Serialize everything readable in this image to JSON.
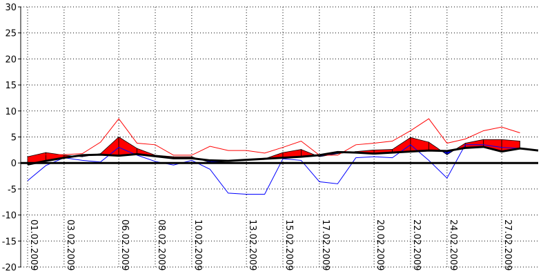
{
  "chart_data": {
    "type": "area",
    "ylim": [
      -20,
      30
    ],
    "yticks": [
      -20,
      -15,
      -10,
      -5,
      0,
      5,
      10,
      15,
      20,
      25,
      30
    ],
    "x_labels": [
      "01.02.2009",
      "03.02.2009",
      "06.02.2009",
      "08.02.2009",
      "10.02.2009",
      "13.02.2009",
      "15.02.2009",
      "17.02.2009",
      "20.02.2009",
      "22.02.2009",
      "24.02.2009",
      "27.02.2009"
    ],
    "x_label_days": [
      1,
      3,
      6,
      8,
      10,
      13,
      15,
      17,
      20,
      22,
      24,
      27
    ],
    "grid": true,
    "days": [
      1,
      2,
      3,
      4,
      5,
      6,
      7,
      8,
      9,
      10,
      11,
      12,
      13,
      14,
      15,
      16,
      17,
      18,
      19,
      20,
      21,
      22,
      23,
      24,
      25,
      26,
      27,
      28,
      29
    ],
    "mean_temperature": [
      1.2,
      2.0,
      1.5,
      1.2,
      1.8,
      5.0,
      2.8,
      1.5,
      1.2,
      1.2,
      0.1,
      0.3,
      0.5,
      0.8,
      2.0,
      2.6,
      1.2,
      1.8,
      2.2,
      2.5,
      2.6,
      4.9,
      4.0,
      1.6,
      3.8,
      4.5,
      4.5,
      4.2,
      null
    ],
    "normal_temperature": [
      -0.3,
      0.4,
      1.0,
      1.5,
      1.6,
      1.4,
      1.7,
      1.3,
      0.9,
      0.9,
      0.5,
      0.4,
      0.6,
      0.8,
      1.0,
      1.2,
      1.5,
      2.1,
      2.0,
      1.8,
      2.0,
      2.2,
      2.4,
      2.3,
      2.9,
      3.1,
      2.2,
      2.8,
      2.4
    ],
    "max_temperature": [
      0.8,
      1.6,
      1.6,
      1.8,
      4.0,
      8.5,
      3.8,
      3.5,
      1.5,
      1.5,
      3.2,
      2.4,
      2.4,
      1.9,
      3.0,
      4.2,
      1.5,
      1.5,
      3.5,
      3.8,
      4.2,
      6.2,
      8.5,
      3.8,
      4.6,
      6.2,
      6.9,
      5.8,
      null
    ],
    "min_temperature": [
      -3.4,
      -0.5,
      1.0,
      0.5,
      0.2,
      3.0,
      1.5,
      0.3,
      -0.4,
      0.5,
      -1.2,
      -5.8,
      -6.0,
      -6.0,
      0.8,
      0.5,
      -3.6,
      -4.0,
      1.0,
      1.2,
      1.0,
      3.5,
      0.5,
      -2.9,
      3.5,
      3.5,
      3.0,
      2.8,
      null
    ],
    "colors": {
      "above_normal": "#ff0000",
      "below_normal": "#0000ff",
      "normal": "#000000",
      "zero_line": "#000000",
      "grid": "#000000"
    }
  }
}
